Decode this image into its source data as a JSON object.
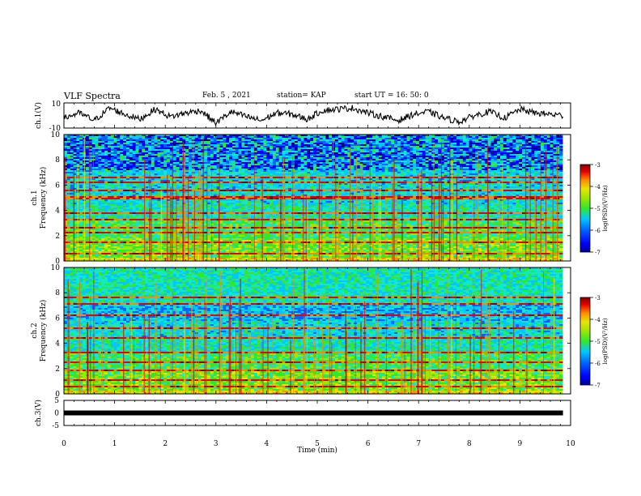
{
  "header": {
    "title": "VLF Spectra",
    "date": "Feb. 5 , 2021",
    "station": "station= KAP",
    "start": "start UT =  16: 50: 0"
  },
  "colors": {
    "background": "#ffffff",
    "axes": "#000000",
    "colormap": [
      "#00008f",
      "#0000ff",
      "#0064ff",
      "#00c8ff",
      "#14e6c8",
      "#32e632",
      "#a0e600",
      "#e6e600",
      "#ff8c00",
      "#e60000",
      "#800000"
    ]
  },
  "chart_data": [
    {
      "type": "line",
      "panel": "ch1-waveform",
      "ylabel": "ch.1(V)",
      "ylim": [
        -10,
        10
      ],
      "ytick_labels": [
        "10",
        "-10"
      ],
      "x_range_min": [
        0,
        9.85
      ],
      "description_of_trace": "noisy waveform between about -7 and 8 V",
      "series": [
        {
          "x": [
            0,
            0.3,
            0.6,
            0.9,
            1.2,
            1.5,
            1.8,
            2.1,
            2.4,
            2.7,
            3.0,
            3.3,
            3.6,
            3.9,
            4.2,
            4.5,
            4.8,
            5.1,
            5.4,
            5.7,
            6.0,
            6.3,
            6.6,
            6.9,
            7.2,
            7.5,
            7.8,
            8.1,
            8.4,
            8.7,
            9.0,
            9.3,
            9.6,
            9.85
          ],
          "values": [
            -2,
            2,
            -4,
            6,
            1,
            -3,
            5,
            -1,
            2,
            4,
            -6,
            3,
            -1,
            -4,
            2,
            1,
            -3,
            4,
            5,
            6,
            2,
            -1,
            -4,
            1,
            3,
            -2,
            -5,
            0,
            3,
            -2,
            5,
            2,
            1,
            0
          ]
        }
      ]
    },
    {
      "type": "heatmap",
      "panel": "ch1-spectrogram",
      "ylabel_lines": [
        "ch.1",
        "Frequency (kHz)"
      ],
      "ylim": [
        0,
        10
      ],
      "yticks": [
        "0",
        "2",
        "4",
        "6",
        "8",
        "10"
      ],
      "colorbar": {
        "label": "log(PSD)(V²/Hz)",
        "ticks": [
          "-3",
          "-4",
          "-5",
          "-6",
          "-7"
        ],
        "range": [
          -7,
          -3
        ]
      }
    },
    {
      "type": "heatmap",
      "panel": "ch2-spectrogram",
      "ylabel_lines": [
        "ch.2",
        "Frequency (kHz)"
      ],
      "ylim": [
        0,
        10
      ],
      "yticks": [
        "0",
        "2",
        "4",
        "6",
        "8",
        "10"
      ],
      "colorbar": {
        "label": "log(PSD)(V²/Hz)",
        "ticks": [
          "-3",
          "-4",
          "-5",
          "-6",
          "-7"
        ],
        "range": [
          -7,
          -3
        ]
      }
    },
    {
      "type": "line",
      "panel": "ch3-waveform",
      "ylabel": "ch.3(V)",
      "ylim": [
        -5,
        5
      ],
      "ytick_labels": [
        "5",
        "0",
        "-5"
      ],
      "series": [
        {
          "x": [
            0,
            9.85
          ],
          "values": [
            0,
            0
          ]
        }
      ]
    }
  ],
  "xaxis": {
    "label": "Time (min)",
    "ticks": [
      "0",
      "1",
      "2",
      "3",
      "4",
      "5",
      "6",
      "7",
      "8",
      "9",
      "10"
    ],
    "range": [
      0,
      10
    ]
  }
}
